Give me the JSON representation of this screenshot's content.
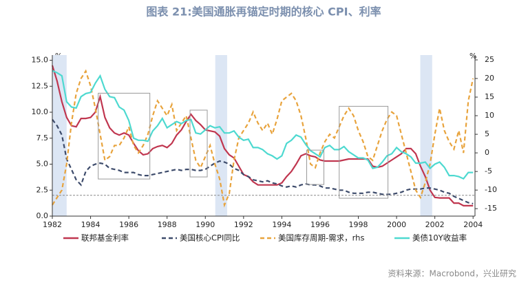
{
  "chart_data": {
    "type": "line",
    "title": "图表 21:美国通胀再锚定时期的核心 CPI、利率",
    "source": "资料来源：Macrobond，兴业研究",
    "y_label": "%",
    "y2_label": "%",
    "xlim": [
      1982,
      2004.1
    ],
    "xticks": [
      1982,
      1984,
      1986,
      1988,
      1990,
      1992,
      1994,
      1996,
      1998,
      2000,
      2002,
      2004
    ],
    "ylim": [
      0,
      15.5
    ],
    "yticks": [
      {
        "value": 0,
        "label": "0.0"
      },
      2.5,
      {
        "value": 5,
        "label": "5.0"
      },
      7.5,
      {
        "value": 10,
        "label": "10.0"
      },
      12.5,
      {
        "value": 15,
        "label": "15.0"
      }
    ],
    "y2lim": [
      -17,
      26.3
    ],
    "y2ticks": [
      -15,
      -10,
      -5,
      0,
      5,
      10,
      15,
      20,
      25
    ],
    "shaded_periods": [
      [
        1982.0,
        1982.75
      ],
      [
        1990.52,
        1991.14
      ],
      [
        2001.24,
        2001.86
      ]
    ],
    "shade_color": "#dce6f4",
    "boxes": [
      [
        1984.4,
        1987.1,
        3.57,
        11.83
      ],
      [
        1989.2,
        1990.1,
        3.77,
        10.2
      ],
      [
        1995.3,
        1996.2,
        3.04,
        6.35
      ],
      [
        1997.0,
        1999.55,
        1.72,
        10.57
      ]
    ],
    "reference_line": 2.0,
    "x": [
      1982,
      1982.25,
      1982.5,
      1982.75,
      1983,
      1983.25,
      1983.5,
      1983.75,
      1984,
      1984.25,
      1984.5,
      1984.75,
      1985,
      1985.25,
      1985.5,
      1985.75,
      1986,
      1986.25,
      1986.5,
      1986.75,
      1987,
      1987.25,
      1987.5,
      1987.75,
      1988,
      1988.25,
      1988.5,
      1988.75,
      1989,
      1989.25,
      1989.5,
      1989.75,
      1990,
      1990.25,
      1990.5,
      1990.75,
      1991,
      1991.25,
      1991.5,
      1991.75,
      1992,
      1992.25,
      1992.5,
      1992.75,
      1993,
      1993.25,
      1993.5,
      1993.75,
      1994,
      1994.25,
      1994.5,
      1994.75,
      1995,
      1995.25,
      1995.5,
      1995.75,
      1996,
      1996.25,
      1996.5,
      1996.75,
      1997,
      1997.25,
      1997.5,
      1997.75,
      1998,
      1998.25,
      1998.5,
      1998.75,
      1999,
      1999.25,
      1999.5,
      1999.75,
      2000,
      2000.25,
      2000.5,
      2000.75,
      2001,
      2001.25,
      2001.5,
      2001.75,
      2002,
      2002.25,
      2002.5,
      2002.75,
      2003,
      2003.25,
      2003.5,
      2003.75,
      2004
    ],
    "series": [
      {
        "name": "联邦基金利率",
        "color": "#c0364f",
        "dashed": false,
        "values": [
          14.5,
          13,
          11,
          9.5,
          8.7,
          8.6,
          9.4,
          9.4,
          9.5,
          10,
          11.5,
          9.5,
          8.5,
          8,
          7.8,
          8,
          7.8,
          7,
          6.3,
          5.9,
          6,
          6.5,
          6.7,
          6.8,
          6.6,
          7,
          7.8,
          8.3,
          9.1,
          9.8,
          9.2,
          8.8,
          8.3,
          8.2,
          8.1,
          7.7,
          6.5,
          5.9,
          5.6,
          4.8,
          4,
          3.8,
          3.3,
          3,
          3,
          3,
          3,
          3,
          3.2,
          3.8,
          4.3,
          5,
          5.8,
          6,
          5.8,
          5.7,
          5.4,
          5.3,
          5.3,
          5.3,
          5.3,
          5.4,
          5.5,
          5.5,
          5.5,
          5.5,
          5.5,
          4.8,
          4.7,
          4.8,
          5.1,
          5.4,
          5.7,
          6,
          6.5,
          6.5,
          6,
          4.8,
          3.8,
          2.5,
          1.8,
          1.75,
          1.75,
          1.75,
          1.25,
          1.25,
          1,
          1,
          1
        ]
      },
      {
        "name": "美国核心CPI同比",
        "color": "#3d4b6b",
        "dashed": true,
        "values": [
          9.3,
          8.7,
          7.8,
          5.5,
          4.5,
          3.5,
          3,
          4.3,
          4.8,
          5,
          5.1,
          5,
          4.6,
          4.5,
          4.4,
          4.2,
          4.2,
          4.2,
          4,
          3.9,
          3.9,
          4,
          4.1,
          4.2,
          4.3,
          4.4,
          4.5,
          4.4,
          4.5,
          4.5,
          4.4,
          4.4,
          4.5,
          4.8,
          5.1,
          5.3,
          5.2,
          5,
          4.6,
          4.4,
          4,
          3.8,
          3.5,
          3.4,
          3.3,
          3.4,
          3.2,
          3.1,
          2.9,
          2.8,
          2.9,
          2.8,
          3,
          3.1,
          3,
          3,
          2.9,
          2.7,
          2.7,
          2.6,
          2.5,
          2.5,
          2.3,
          2.2,
          2.2,
          2.2,
          2.3,
          2.3,
          2.2,
          2.1,
          2.1,
          2.1,
          2.2,
          2.3,
          2.5,
          2.6,
          2.6,
          2.6,
          2.7,
          2.7,
          2.6,
          2.5,
          2.3,
          2.2,
          1.9,
          1.7,
          1.5,
          1.3,
          1.2
        ]
      },
      {
        "name": "美国库存周期-需求，rhs",
        "color": "#e8a33c",
        "dashed": true,
        "axis": "y2",
        "values": [
          -14,
          -12,
          -10,
          -3,
          8,
          16,
          20,
          22,
          18,
          12,
          5,
          -2,
          -1,
          2,
          2,
          4,
          7,
          2,
          0,
          2,
          5,
          10,
          14,
          12,
          10,
          13,
          6,
          8,
          10,
          4,
          -2,
          -4,
          -1,
          2,
          -3,
          -7,
          -14,
          -11,
          -2,
          4,
          6,
          8,
          11,
          8,
          6,
          8,
          5,
          9,
          14,
          15,
          16,
          14,
          10,
          4,
          -3,
          -4,
          0,
          3,
          5,
          4,
          7,
          10,
          12,
          10,
          6,
          3,
          -1,
          -2,
          2,
          6,
          9,
          11,
          10,
          5,
          0,
          -5,
          -10,
          -12,
          -8,
          -3,
          5,
          12,
          6,
          3,
          1,
          6,
          0,
          14,
          20
        ]
      },
      {
        "name": "美债10Y收益率",
        "color": "#4dd9d0",
        "dashed": false,
        "values": [
          14,
          13.8,
          13.5,
          11,
          10.5,
          10.4,
          11.5,
          11.8,
          11.9,
          12.8,
          13.5,
          12.2,
          11.5,
          11.4,
          10.5,
          10.2,
          9.2,
          7.5,
          7.3,
          7.3,
          7.2,
          8.2,
          8.7,
          9.4,
          8.5,
          8.8,
          9.1,
          8.9,
          9.2,
          9.3,
          8,
          7.9,
          8.3,
          8.7,
          8.5,
          8.6,
          8,
          8,
          8.2,
          7.6,
          7.3,
          7.4,
          6.6,
          6.6,
          6.4,
          6,
          5.8,
          5.5,
          5.8,
          7,
          7.3,
          7.8,
          7.6,
          6.9,
          6.3,
          6,
          5.7,
          6.6,
          6.8,
          6.4,
          6.4,
          6.7,
          6.2,
          5.9,
          5.6,
          5.6,
          5.4,
          4.6,
          4.7,
          5.2,
          5.8,
          6,
          6.6,
          6.2,
          6,
          5.7,
          5.1,
          5.1,
          5.2,
          4.6,
          5,
          5.2,
          4.7,
          3.9,
          3.9,
          3.8,
          3.6,
          4.2,
          4.2
        ]
      }
    ]
  }
}
